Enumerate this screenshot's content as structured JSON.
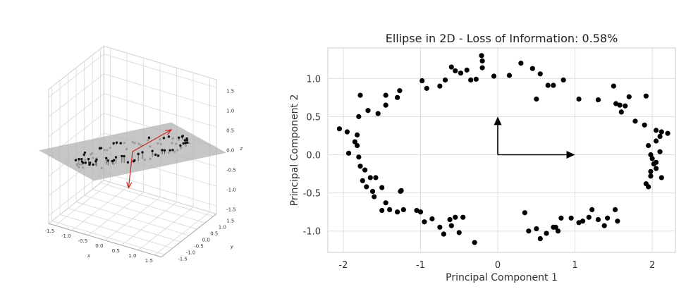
{
  "chart_data": [
    {
      "type": "scatter",
      "title": "",
      "xlabel": "x",
      "ylabel": "y",
      "zlabel": "z",
      "x_ticks": [
        "-1.5",
        "-1.0",
        "-0.5",
        "0.0",
        "0.5",
        "1.0",
        "1.5"
      ],
      "y_ticks": [
        "-1.5",
        "-1.0",
        "-0.5",
        "0.0",
        "0.5",
        "1.0",
        "1.5"
      ],
      "z_ticks": [
        "-1.5",
        "-1.0",
        "-0.5",
        "0.0",
        "0.5",
        "1.0",
        "1.5"
      ],
      "xlim": [
        -1.7,
        1.7
      ],
      "ylim": [
        -1.7,
        1.7
      ],
      "zlim": [
        -1.7,
        1.7
      ],
      "plane_color": "#b3b3b3",
      "point_color": "#111111",
      "vector_color": "#cc2222",
      "vectors": [
        {
          "from": [
            0.0,
            0.0,
            0.0
          ],
          "to": [
            0.9,
            0.55,
            0.6
          ]
        },
        {
          "from": [
            0.0,
            0.0,
            0.0
          ],
          "to": [
            0.1,
            -0.45,
            -0.75
          ]
        }
      ],
      "ellipse": {
        "a": 1.8,
        "b": 0.95,
        "n": 95,
        "noise": 0.12
      },
      "plane_normal": [
        -0.35,
        0.45,
        0.82
      ]
    },
    {
      "type": "scatter",
      "title": "Ellipse in 2D - Loss of Information: 0.58%",
      "xlabel": "Principal Component 1",
      "ylabel": "Principal Component 2",
      "xlim": [
        -2.2,
        2.3
      ],
      "ylim": [
        -1.28,
        1.4
      ],
      "x_ticks": [
        -2,
        -1,
        0,
        1,
        2
      ],
      "y_ticks": [
        -1.0,
        -0.5,
        0.0,
        0.5,
        1.0
      ],
      "grid": true,
      "point_color": "#000000",
      "arrows": [
        {
          "from": [
            0,
            0
          ],
          "to": [
            1.0,
            0.0
          ]
        },
        {
          "from": [
            0,
            0
          ],
          "to": [
            0.0,
            0.5
          ]
        }
      ],
      "points": [
        [
          -2.05,
          0.34
        ],
        [
          -1.95,
          0.3
        ],
        [
          -1.93,
          0.02
        ],
        [
          -1.85,
          0.17
        ],
        [
          -1.82,
          0.26
        ],
        [
          -1.82,
          0.12
        ],
        [
          -1.8,
          0.5
        ],
        [
          -1.78,
          0.78
        ],
        [
          -1.8,
          -0.03
        ],
        [
          -1.78,
          -0.15
        ],
        [
          -1.75,
          -0.34
        ],
        [
          -1.72,
          -0.2
        ],
        [
          -1.7,
          -0.42
        ],
        [
          -1.68,
          0.58
        ],
        [
          -1.65,
          -0.3
        ],
        [
          -1.62,
          -0.48
        ],
        [
          -1.6,
          -0.55
        ],
        [
          -1.58,
          -0.3
        ],
        [
          -1.55,
          0.54
        ],
        [
          -1.5,
          -0.43
        ],
        [
          -1.45,
          0.65
        ],
        [
          -1.45,
          0.78
        ],
        [
          -1.3,
          0.75
        ],
        [
          -1.27,
          0.84
        ],
        [
          -1.26,
          -0.48
        ],
        [
          -1.25,
          -0.47
        ],
        [
          -1.3,
          -0.75
        ],
        [
          -1.4,
          -0.72
        ],
        [
          -1.5,
          -0.73
        ],
        [
          -1.45,
          -0.63
        ],
        [
          -1.22,
          -0.72
        ],
        [
          -1.05,
          -0.73
        ],
        [
          -1.0,
          -0.75
        ],
        [
          -0.95,
          -0.88
        ],
        [
          -0.85,
          -0.84
        ],
        [
          -0.75,
          -0.95
        ],
        [
          -0.7,
          -1.04
        ],
        [
          -0.62,
          -0.85
        ],
        [
          -0.6,
          -0.93
        ],
        [
          -0.55,
          -0.82
        ],
        [
          -0.5,
          -1.02
        ],
        [
          -0.45,
          -0.82
        ],
        [
          -0.3,
          -1.15
        ],
        [
          -0.98,
          0.97
        ],
        [
          -0.92,
          0.87
        ],
        [
          -0.75,
          0.9
        ],
        [
          -0.68,
          0.98
        ],
        [
          -0.6,
          1.15
        ],
        [
          -0.55,
          1.1
        ],
        [
          -0.48,
          1.07
        ],
        [
          -0.4,
          1.11
        ],
        [
          -0.35,
          0.98
        ],
        [
          -0.28,
          0.99
        ],
        [
          -0.2,
          1.23
        ],
        [
          -0.21,
          1.3
        ],
        [
          -0.2,
          1.14
        ],
        [
          -0.05,
          1.03
        ],
        [
          0.15,
          1.04
        ],
        [
          0.3,
          1.2
        ],
        [
          0.45,
          1.13
        ],
        [
          0.5,
          0.73
        ],
        [
          0.55,
          1.06
        ],
        [
          0.65,
          0.91
        ],
        [
          0.72,
          0.91
        ],
        [
          0.85,
          0.98
        ],
        [
          0.35,
          -0.76
        ],
        [
          0.4,
          -1.0
        ],
        [
          0.5,
          -0.97
        ],
        [
          0.55,
          -1.1
        ],
        [
          0.63,
          -1.03
        ],
        [
          0.72,
          -0.95
        ],
        [
          0.75,
          -0.95
        ],
        [
          0.78,
          -1.0
        ],
        [
          0.82,
          -0.83
        ],
        [
          0.95,
          -0.83
        ],
        [
          1.05,
          -0.89
        ],
        [
          1.1,
          -0.87
        ],
        [
          1.18,
          -0.82
        ],
        [
          1.22,
          -0.72
        ],
        [
          1.3,
          -0.85
        ],
        [
          1.38,
          -0.93
        ],
        [
          1.42,
          -0.83
        ],
        [
          1.52,
          -0.72
        ],
        [
          1.55,
          -0.87
        ],
        [
          1.05,
          0.73
        ],
        [
          1.3,
          0.72
        ],
        [
          1.5,
          0.9
        ],
        [
          1.53,
          0.67
        ],
        [
          1.58,
          0.65
        ],
        [
          1.6,
          0.56
        ],
        [
          1.65,
          0.64
        ],
        [
          1.7,
          0.76
        ],
        [
          1.78,
          0.44
        ],
        [
          1.9,
          0.39
        ],
        [
          1.92,
          0.77
        ],
        [
          1.95,
          0.12
        ],
        [
          1.98,
          0.0
        ],
        [
          2.0,
          -0.05
        ],
        [
          2.02,
          -0.12
        ],
        [
          1.98,
          -0.22
        ],
        [
          1.92,
          -0.38
        ],
        [
          1.95,
          -0.42
        ],
        [
          1.98,
          -0.28
        ],
        [
          2.05,
          -0.18
        ],
        [
          2.05,
          -0.1
        ],
        [
          2.1,
          0.04
        ],
        [
          2.1,
          0.24
        ],
        [
          2.12,
          0.3
        ],
        [
          2.2,
          0.28
        ],
        [
          2.05,
          0.32
        ],
        [
          2.12,
          -0.3
        ],
        [
          2.05,
          0.18
        ]
      ]
    }
  ]
}
